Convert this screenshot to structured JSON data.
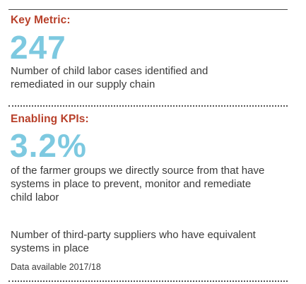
{
  "key_metric": {
    "heading": "Key Metric:",
    "value": "247",
    "description_line1": "Number of child labor cases identified and",
    "description_line2": "remediated in our supply chain"
  },
  "enabling_kpis": {
    "heading": "Enabling KPIs:",
    "value": "3.2%",
    "description_line1": "of the farmer groups we directly source from that have",
    "description_line2": "systems in place to prevent, monitor and remediate",
    "description_line3": "child labor",
    "second_kpi_line1": "Number of third-party suppliers who have equivalent",
    "second_kpi_line2": "systems in place",
    "note": "Data available 2017/18"
  },
  "colors": {
    "heading": "#b8402a",
    "big_number": "#7dc9e0",
    "body_text": "#3a3a3a"
  }
}
